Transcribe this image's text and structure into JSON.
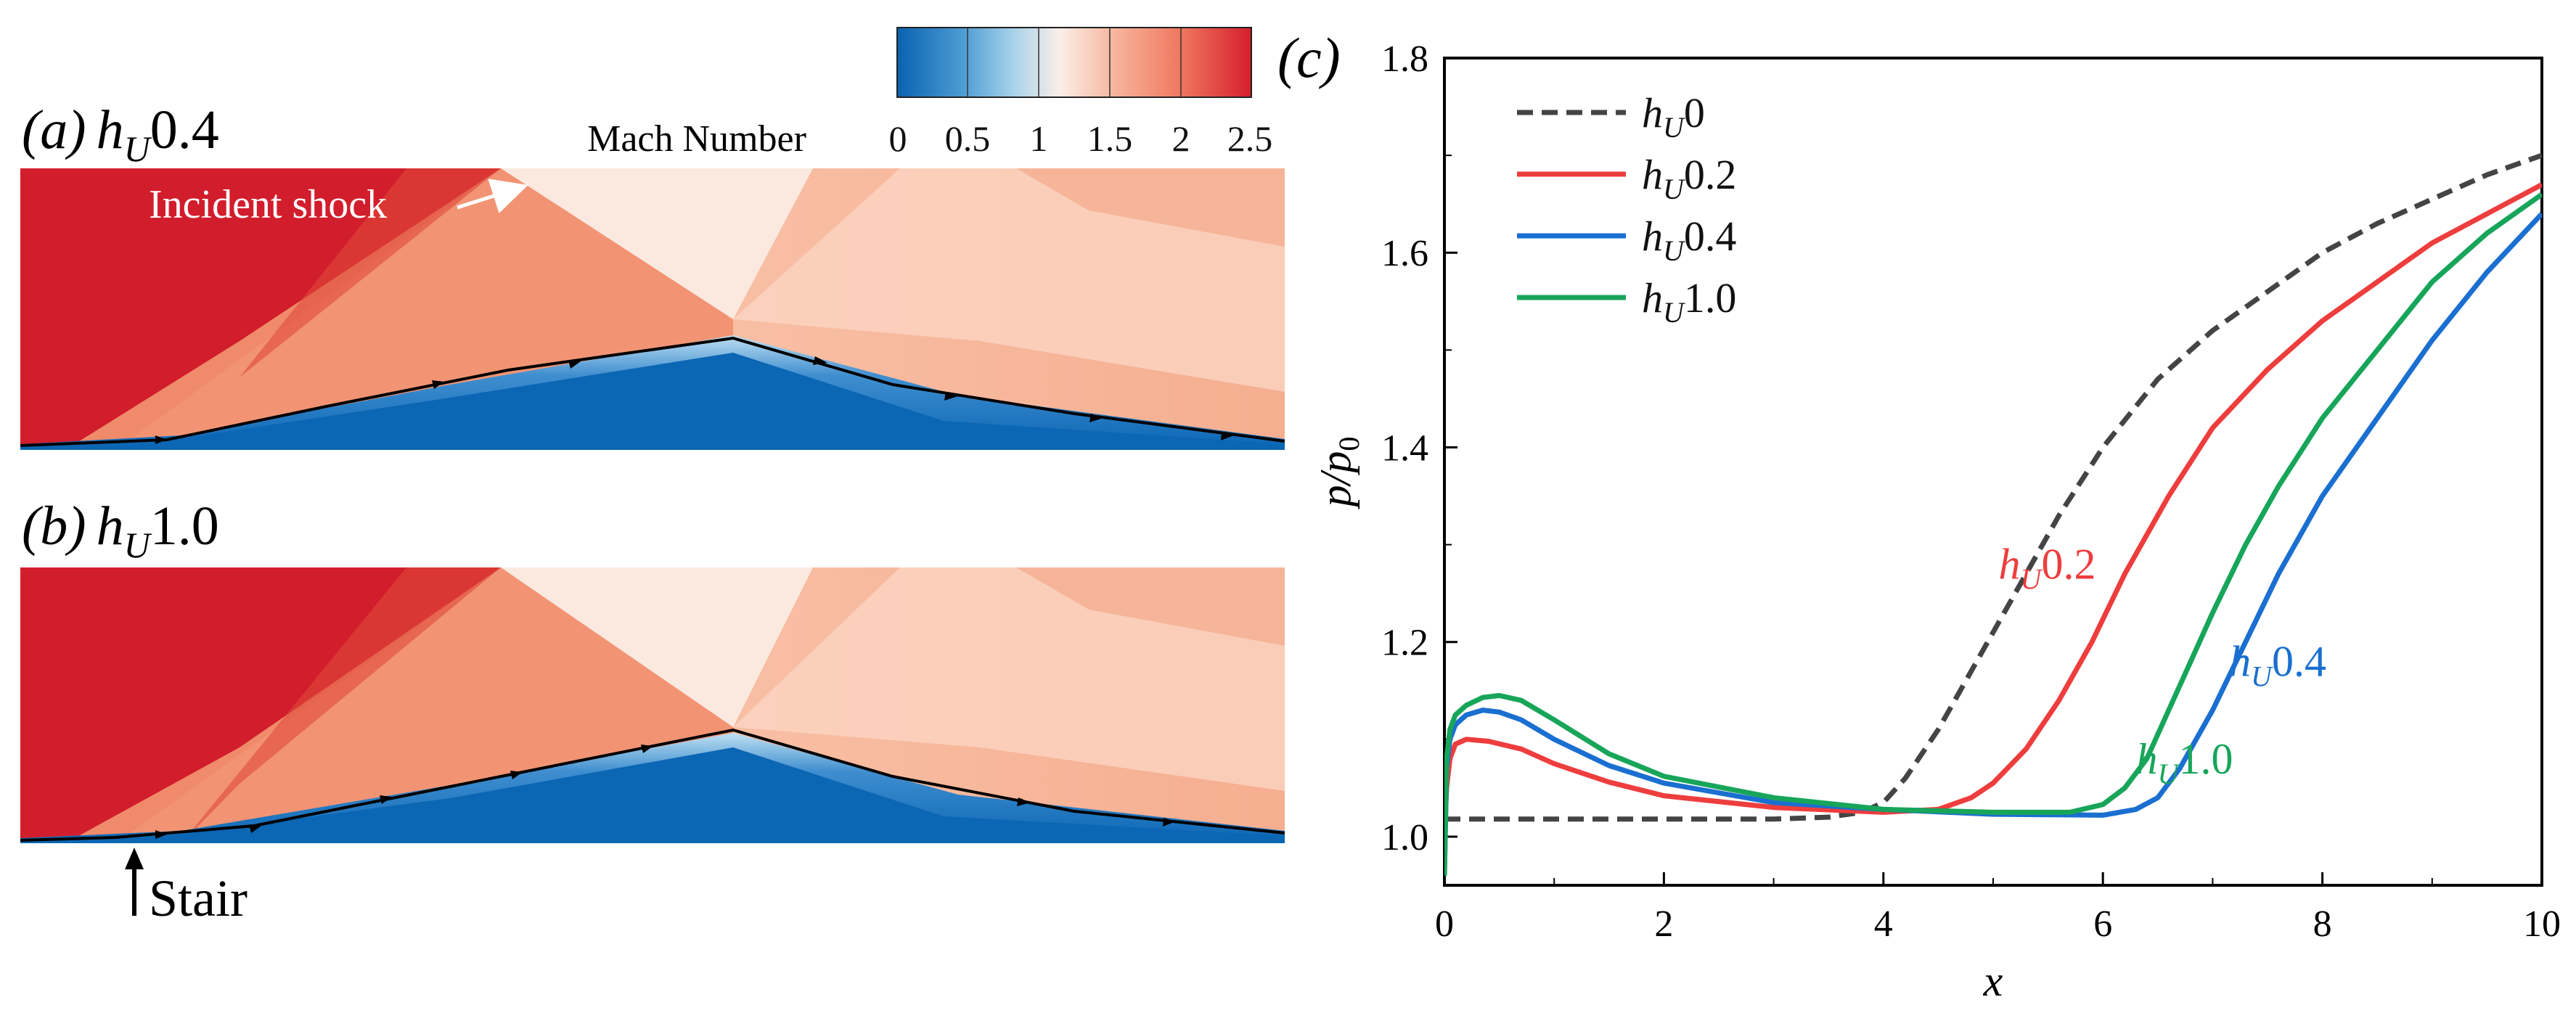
{
  "figure": {
    "panel_a": {
      "label": "(a)",
      "case_name": "h",
      "case_sub": "U",
      "case_value": "0.4",
      "annotation": "Incident shock"
    },
    "panel_b": {
      "label": "(b)",
      "case_name": "h",
      "case_sub": "U",
      "case_value": "1.0",
      "annotation": "Stair"
    },
    "colorbar": {
      "title": "Mach Number",
      "ticks": [
        "0",
        "0.5",
        "1",
        "1.5",
        "2",
        "2.5"
      ],
      "min": 0,
      "max": 2.5,
      "colors": [
        "#0a62b0",
        "#4a9ad3",
        "#a9d3ea",
        "#fbeee7",
        "#f6b39a",
        "#ef7860",
        "#d51e2d"
      ]
    },
    "contour_colors": {
      "freestream": "#d21d2c",
      "mid": "#f29474",
      "light": "#fde8dd",
      "downstream": "#f8c2aa",
      "boundary_layer": "#0b66b4",
      "edge": "#9fcfe9",
      "streamline": "#000000"
    }
  },
  "chart_data": {
    "type": "line",
    "panel_label": "(c)",
    "title": "",
    "xlabel": "x",
    "ylabel": "p/p",
    "ylabel_sub": "0",
    "xlim": [
      0,
      10
    ],
    "ylim": [
      0.95,
      1.8
    ],
    "xticks": [
      "0",
      "2",
      "4",
      "6",
      "8",
      "10"
    ],
    "yticks": [
      "1.0",
      "1.2",
      "1.4",
      "1.6",
      "1.8"
    ],
    "series": [
      {
        "name": "hU0",
        "legend_main": "h",
        "legend_sub": "U",
        "legend_val": "0",
        "color": "#444444",
        "dash": true,
        "inline_label": "",
        "x": [
          0,
          0.5,
          1,
          2,
          3,
          3.5,
          3.8,
          4.0,
          4.2,
          4.5,
          4.8,
          5.0,
          5.3,
          5.6,
          6.0,
          6.5,
          7.0,
          7.5,
          8.0,
          8.5,
          9.0,
          9.5,
          10.0
        ],
        "y": [
          1.018,
          1.018,
          1.018,
          1.018,
          1.018,
          1.02,
          1.025,
          1.035,
          1.06,
          1.11,
          1.17,
          1.21,
          1.27,
          1.33,
          1.4,
          1.47,
          1.52,
          1.56,
          1.6,
          1.63,
          1.655,
          1.68,
          1.7
        ]
      },
      {
        "name": "hU0.2",
        "legend_main": "h",
        "legend_sub": "U",
        "legend_val": "0.2",
        "color": "#ee3d3d",
        "dash": false,
        "inline_label": "hU0.2",
        "inline_main": "h",
        "inline_sub": "U",
        "inline_val": "0.2",
        "inline_x": 5.05,
        "inline_y": 1.265,
        "x": [
          0,
          0.02,
          0.05,
          0.1,
          0.2,
          0.4,
          0.7,
          1.0,
          1.5,
          2.0,
          3.0,
          4.0,
          4.5,
          4.8,
          5.0,
          5.3,
          5.6,
          5.9,
          6.2,
          6.6,
          7.0,
          7.5,
          8.0,
          8.5,
          9.0,
          9.5,
          10.0
        ],
        "y": [
          1.0,
          1.05,
          1.08,
          1.095,
          1.1,
          1.098,
          1.09,
          1.075,
          1.056,
          1.042,
          1.03,
          1.025,
          1.028,
          1.04,
          1.055,
          1.09,
          1.14,
          1.2,
          1.27,
          1.35,
          1.42,
          1.48,
          1.53,
          1.57,
          1.61,
          1.64,
          1.67
        ]
      },
      {
        "name": "hU0.4",
        "legend_main": "h",
        "legend_sub": "U",
        "legend_val": "0.4",
        "color": "#1a6fd0",
        "dash": false,
        "inline_label": "hU0.4",
        "inline_main": "h",
        "inline_sub": "U",
        "inline_val": "0.4",
        "inline_x": 7.15,
        "inline_y": 1.165,
        "x": [
          0,
          0.02,
          0.05,
          0.1,
          0.2,
          0.35,
          0.5,
          0.7,
          1.0,
          1.5,
          2.0,
          3.0,
          4.0,
          5.0,
          6.0,
          6.3,
          6.5,
          6.7,
          7.0,
          7.3,
          7.6,
          8.0,
          8.5,
          9.0,
          9.5,
          10.0
        ],
        "y": [
          0.96,
          1.07,
          1.1,
          1.115,
          1.125,
          1.13,
          1.128,
          1.12,
          1.1,
          1.073,
          1.055,
          1.035,
          1.028,
          1.023,
          1.022,
          1.028,
          1.04,
          1.07,
          1.13,
          1.2,
          1.27,
          1.35,
          1.43,
          1.51,
          1.58,
          1.64
        ]
      },
      {
        "name": "hU1.0",
        "legend_main": "h",
        "legend_sub": "U",
        "legend_val": "1.0",
        "color": "#17a55a",
        "dash": false,
        "inline_label": "hU1.0",
        "inline_main": "h",
        "inline_sub": "U",
        "inline_val": "1.0",
        "inline_x": 6.3,
        "inline_y": 1.065,
        "x": [
          0,
          0.02,
          0.05,
          0.1,
          0.2,
          0.35,
          0.5,
          0.7,
          1.0,
          1.5,
          2.0,
          3.0,
          4.0,
          5.0,
          5.7,
          6.0,
          6.2,
          6.4,
          6.6,
          6.8,
          7.0,
          7.3,
          7.6,
          8.0,
          8.5,
          9.0,
          9.5,
          10.0
        ],
        "y": [
          0.96,
          1.08,
          1.11,
          1.125,
          1.135,
          1.143,
          1.145,
          1.14,
          1.12,
          1.085,
          1.062,
          1.04,
          1.028,
          1.025,
          1.025,
          1.033,
          1.05,
          1.08,
          1.13,
          1.18,
          1.23,
          1.3,
          1.36,
          1.43,
          1.5,
          1.57,
          1.62,
          1.66
        ]
      }
    ]
  }
}
